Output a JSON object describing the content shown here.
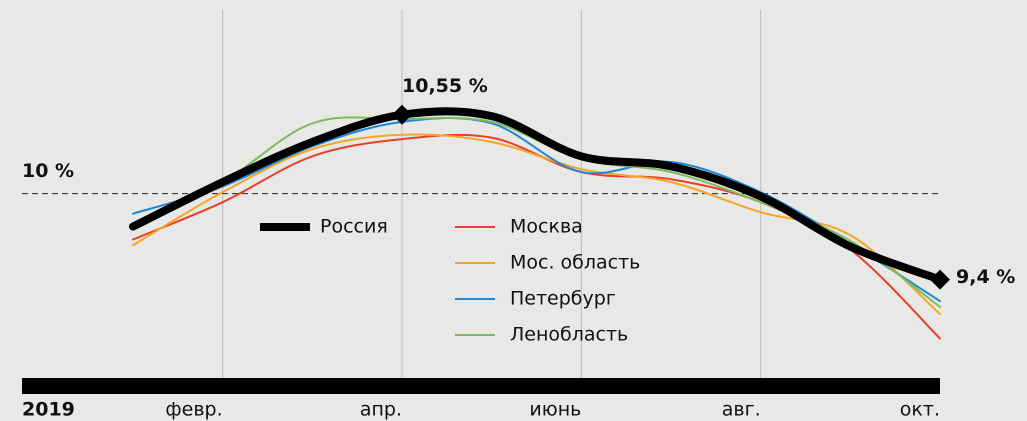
{
  "chart_data": {
    "type": "line",
    "year": "2019",
    "categories": [
      null,
      "февр.",
      null,
      "апр.",
      null,
      "июнь",
      null,
      "авг.",
      null,
      "окт."
    ],
    "ylim": [
      8.7,
      11.35
    ],
    "reference_line": {
      "value": 10,
      "label": "10 %"
    },
    "annotations": [
      {
        "series": 0,
        "index": 3,
        "label": "10,55 %"
      },
      {
        "series": 0,
        "index": 9,
        "label": "9,4 %"
      }
    ],
    "series": [
      {
        "name": "Россия",
        "color": "#000000",
        "values": [
          9.77,
          10.08,
          10.36,
          10.55,
          10.54,
          10.26,
          10.19,
          9.98,
          9.63,
          9.4
        ]
      },
      {
        "name": "Москва",
        "color": "#e8402a",
        "values": [
          9.68,
          9.94,
          10.26,
          10.38,
          10.39,
          10.15,
          10.1,
          9.94,
          9.61,
          8.99
        ]
      },
      {
        "name": "Мос. область",
        "color": "#f5a623",
        "values": [
          9.64,
          10.01,
          10.31,
          10.41,
          10.36,
          10.17,
          10.08,
          9.87,
          9.71,
          9.16
        ]
      },
      {
        "name": "Петербург",
        "color": "#1e88d6",
        "values": [
          9.86,
          10.05,
          10.33,
          10.5,
          10.49,
          10.15,
          10.22,
          10.01,
          9.65,
          9.25
        ]
      },
      {
        "name": "Ленобласть",
        "color": "#7dbb5c",
        "values": [
          9.79,
          10.08,
          10.49,
          10.52,
          10.5,
          10.24,
          10.15,
          9.94,
          9.67,
          9.21
        ]
      }
    ]
  }
}
